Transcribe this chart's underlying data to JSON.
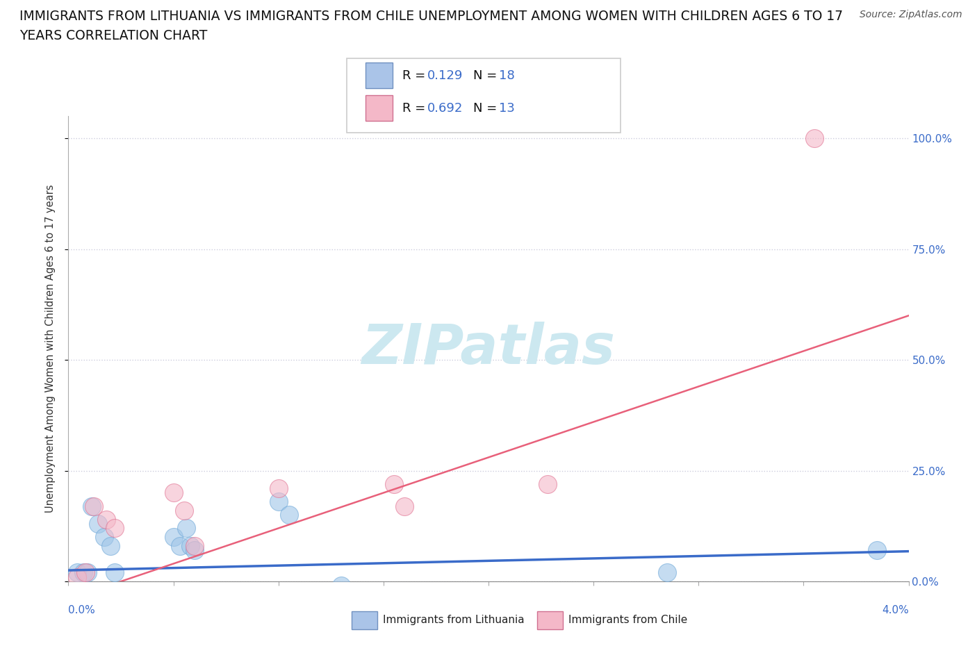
{
  "title_line1": "IMMIGRANTS FROM LITHUANIA VS IMMIGRANTS FROM CHILE UNEMPLOYMENT AMONG WOMEN WITH CHILDREN AGES 6 TO 17",
  "title_line2": "YEARS CORRELATION CHART",
  "source": "Source: ZipAtlas.com",
  "ylabel": "Unemployment Among Women with Children Ages 6 to 17 years",
  "xlim": [
    0.0,
    4.0
  ],
  "ylim": [
    0.0,
    1.05
  ],
  "yticks": [
    0.0,
    0.25,
    0.5,
    0.75,
    1.0
  ],
  "ytick_labels": [
    "0.0%",
    "25.0%",
    "50.0%",
    "75.0%",
    "100.0%"
  ],
  "legend_r1": "0.129",
  "legend_n1": "18",
  "legend_r2": "0.692",
  "legend_n2": "13",
  "watermark": "ZIPatlas",
  "watermark_color": "#cce8f0",
  "scatter_lithuania": {
    "x": [
      0.04,
      0.07,
      0.09,
      0.11,
      0.14,
      0.17,
      0.2,
      0.22,
      0.5,
      0.53,
      0.56,
      0.58,
      0.6,
      1.0,
      1.05,
      1.3,
      2.85,
      3.85
    ],
    "y": [
      0.02,
      0.02,
      0.02,
      0.17,
      0.13,
      0.1,
      0.08,
      0.02,
      0.1,
      0.08,
      0.12,
      0.08,
      0.07,
      0.18,
      0.15,
      -0.01,
      0.02,
      0.07
    ],
    "color": "#9fc5e8",
    "edgecolor": "#6fa8d8",
    "size": 350,
    "alpha": 0.6
  },
  "scatter_chile": {
    "x": [
      0.04,
      0.08,
      0.12,
      0.18,
      0.22,
      0.5,
      0.55,
      0.6,
      1.0,
      1.55,
      1.6,
      2.28,
      3.55
    ],
    "y": [
      0.01,
      0.02,
      0.17,
      0.14,
      0.12,
      0.2,
      0.16,
      0.08,
      0.21,
      0.22,
      0.17,
      0.22,
      1.0
    ],
    "color": "#f4b8c8",
    "edgecolor": "#e07090",
    "size": 350,
    "alpha": 0.6
  },
  "line_lithuania": {
    "color": "#3a6bc9",
    "linewidth": 2.5,
    "x_start": 0.0,
    "x_end": 4.0,
    "y_start": 0.025,
    "y_end": 0.068
  },
  "line_chile": {
    "color": "#e8607a",
    "linewidth": 1.8,
    "x_start": 0.0,
    "x_end": 4.0,
    "y_start": -0.04,
    "y_end": 0.6
  },
  "grid_color": "#ccccdd",
  "grid_linestyle": ":",
  "background_color": "#ffffff",
  "title_fontsize": 13.5,
  "axis_label_fontsize": 10.5,
  "tick_fontsize": 11,
  "source_fontsize": 10,
  "legend_fontsize": 13,
  "blue_color": "#3a6bc9",
  "patch_blue": "#aac4e8",
  "patch_blue_edge": "#7090c0",
  "patch_pink": "#f4b8c8",
  "patch_pink_edge": "#d07090"
}
